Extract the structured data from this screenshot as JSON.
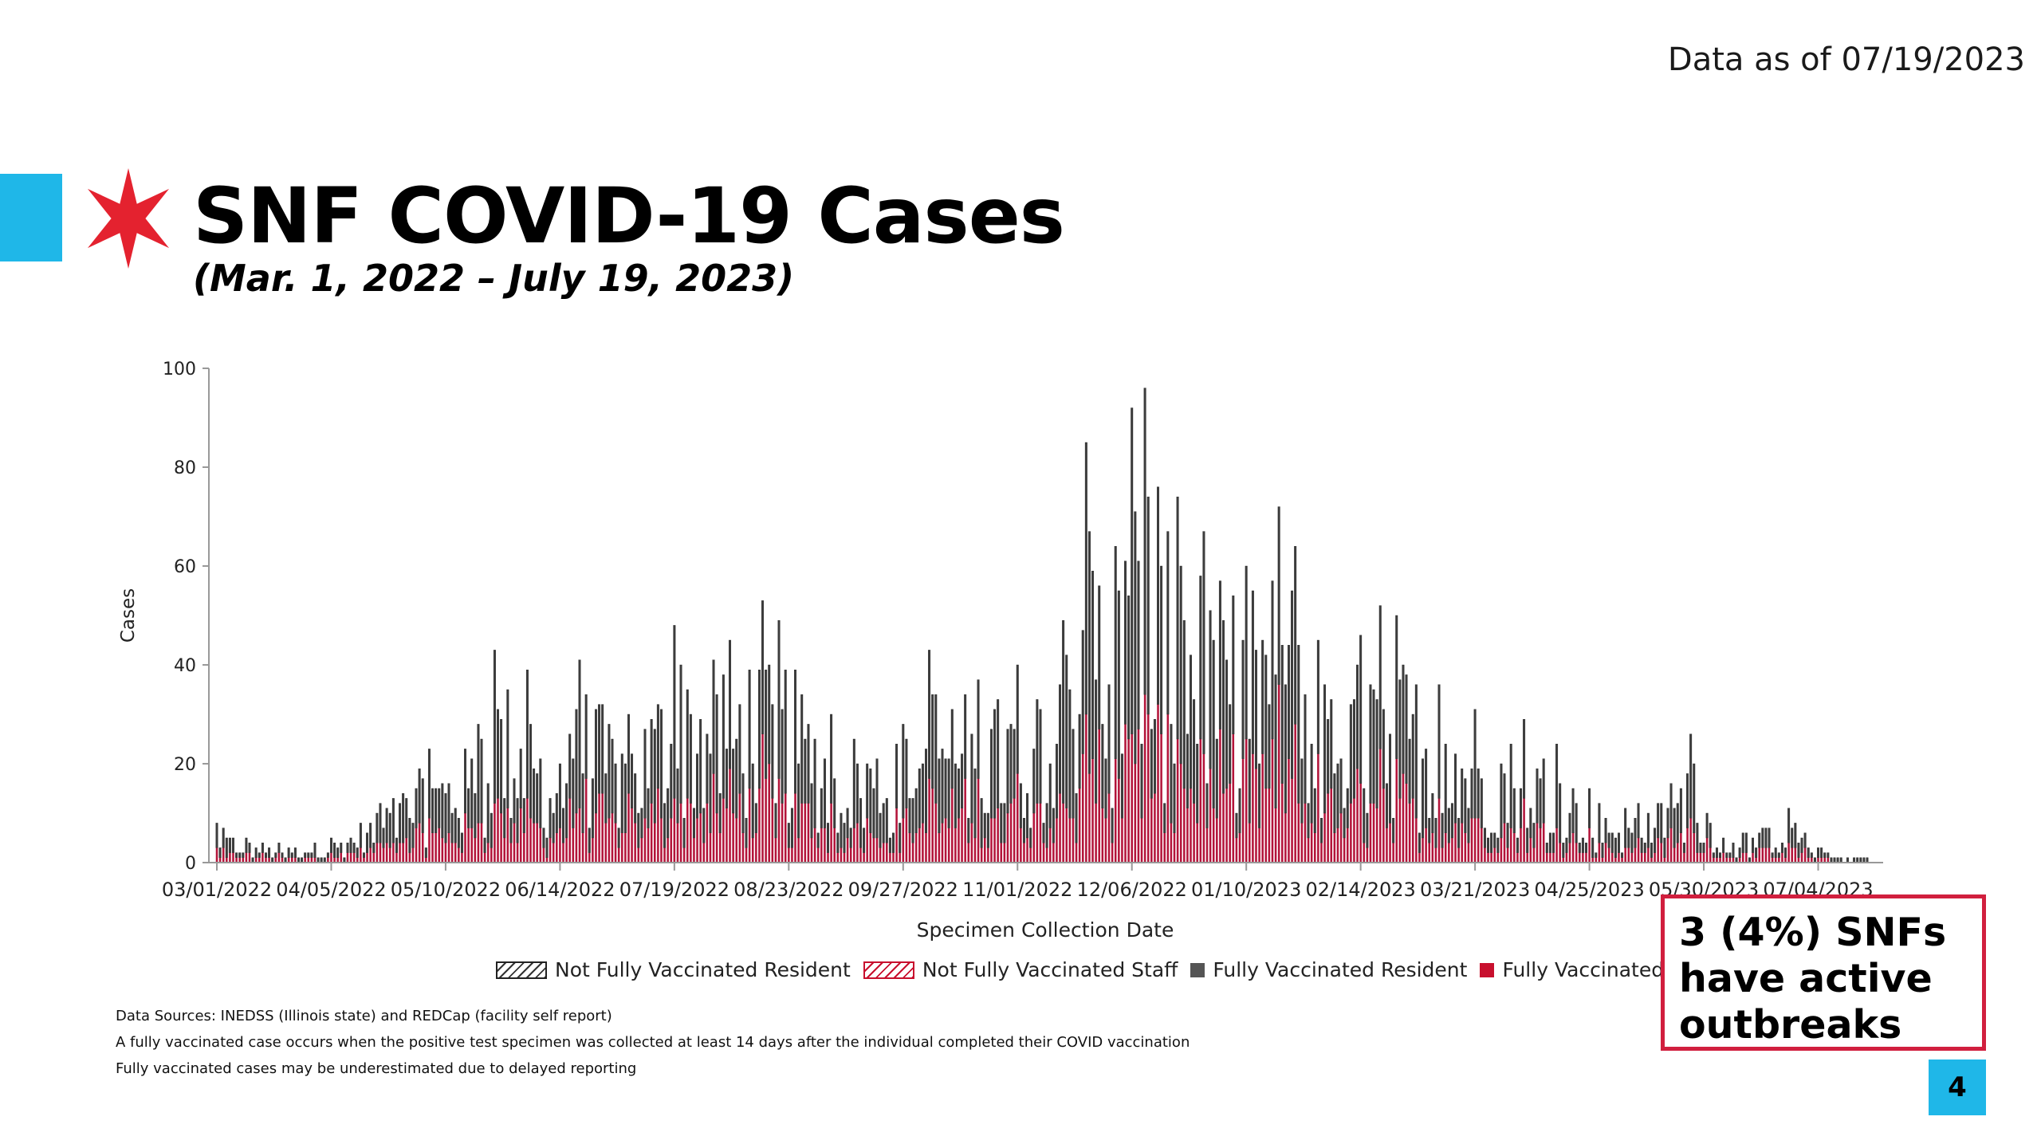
{
  "header": {
    "data_as_of": "Data as of 07/19/2023",
    "title": "SNF COVID-19 Cases",
    "subtitle": "(Mar. 1, 2022 – July 19, 2023)"
  },
  "icons": {
    "brand": "star-icon"
  },
  "colors": {
    "accent": "#1fb7e8",
    "brand_red": "#e4222f",
    "fully_vaccinated_resident": "#3d3d3d",
    "fully_vaccinated_staff": "#b3143a",
    "callout_border": "#d11f3e"
  },
  "chart_data": {
    "type": "bar",
    "stacked": true,
    "xlabel": "Specimen Collection Date",
    "ylabel": "Cases",
    "ylim": [
      0,
      100
    ],
    "yticks": [
      0,
      20,
      40,
      60,
      80,
      100
    ],
    "x_start": "03/01/2022",
    "x_end": "07/19/2023",
    "xticks": [
      "03/01/2022",
      "04/05/2022",
      "05/10/2022",
      "06/14/2022",
      "07/19/2022",
      "08/23/2022",
      "09/27/2022",
      "11/01/2022",
      "12/06/2022",
      "01/10/2023",
      "02/14/2023",
      "03/21/2023",
      "04/25/2023",
      "05/30/2023",
      "07/04/2023"
    ],
    "grid": false,
    "legend_position": "bottom",
    "legend": [
      {
        "name": "Not Fully Vaccinated Resident",
        "style": "hatch-black"
      },
      {
        "name": "Not Fully Vaccinated Staff",
        "style": "hatch-red"
      },
      {
        "name": "Fully Vaccinated Resident",
        "style": "solid",
        "color": "#555555"
      },
      {
        "name": "Fully Vaccinated Staff",
        "style": "solid",
        "color": "#c8102e"
      }
    ],
    "daily_totals_approx": [
      {
        "date": "03/01/2022",
        "total": 8
      },
      {
        "date": "03/10/2022",
        "total": 5
      },
      {
        "date": "03/20/2022",
        "total": 4
      },
      {
        "date": "04/05/2022",
        "total": 5
      },
      {
        "date": "04/20/2022",
        "total": 12
      },
      {
        "date": "05/05/2022",
        "total": 23
      },
      {
        "date": "05/20/2022",
        "total": 28
      },
      {
        "date": "05/25/2022",
        "total": 43
      },
      {
        "date": "06/04/2022",
        "total": 39
      },
      {
        "date": "06/14/2022",
        "total": 20
      },
      {
        "date": "06/20/2022",
        "total": 41
      },
      {
        "date": "07/05/2022",
        "total": 30
      },
      {
        "date": "07/19/2022",
        "total": 48
      },
      {
        "date": "08/05/2022",
        "total": 45
      },
      {
        "date": "08/15/2022",
        "total": 53
      },
      {
        "date": "08/20/2022",
        "total": 49
      },
      {
        "date": "09/05/2022",
        "total": 30
      },
      {
        "date": "09/27/2022",
        "total": 28
      },
      {
        "date": "10/05/2022",
        "total": 43
      },
      {
        "date": "10/20/2022",
        "total": 37
      },
      {
        "date": "11/01/2022",
        "total": 40
      },
      {
        "date": "11/15/2022",
        "total": 49
      },
      {
        "date": "11/22/2022",
        "total": 85
      },
      {
        "date": "12/01/2022",
        "total": 64
      },
      {
        "date": "12/06/2022",
        "total": 92
      },
      {
        "date": "12/10/2022",
        "total": 96
      },
      {
        "date": "12/14/2022",
        "total": 76
      },
      {
        "date": "12/20/2022",
        "total": 74
      },
      {
        "date": "12/28/2022",
        "total": 67
      },
      {
        "date": "01/10/2023",
        "total": 60
      },
      {
        "date": "01/20/2023",
        "total": 72
      },
      {
        "date": "01/25/2023",
        "total": 64
      },
      {
        "date": "02/01/2023",
        "total": 45
      },
      {
        "date": "02/14/2023",
        "total": 46
      },
      {
        "date": "02/20/2023",
        "total": 52
      },
      {
        "date": "02/25/2023",
        "total": 50
      },
      {
        "date": "03/10/2023",
        "total": 36
      },
      {
        "date": "03/21/2023",
        "total": 31
      },
      {
        "date": "04/05/2023",
        "total": 29
      },
      {
        "date": "04/15/2023",
        "total": 24
      },
      {
        "date": "04/25/2023",
        "total": 15
      },
      {
        "date": "05/10/2023",
        "total": 12
      },
      {
        "date": "05/20/2023",
        "total": 16
      },
      {
        "date": "05/26/2023",
        "total": 26
      },
      {
        "date": "06/05/2023",
        "total": 5
      },
      {
        "date": "06/25/2023",
        "total": 11
      },
      {
        "date": "07/04/2023",
        "total": 3
      },
      {
        "date": "07/19/2023",
        "total": 1
      }
    ]
  },
  "footnotes": [
    "Data Sources: INEDSS (Illinois state) and REDCap (facility self report)",
    "A fully vaccinated case occurs when the positive test specimen was collected at least 14 days after the individual completed their COVID vaccination",
    "Fully vaccinated cases may be underestimated due to delayed reporting"
  ],
  "callout": {
    "line1": "3 (4%) SNFs",
    "line2": "have active",
    "line3": "outbreaks"
  },
  "page_number": "4"
}
